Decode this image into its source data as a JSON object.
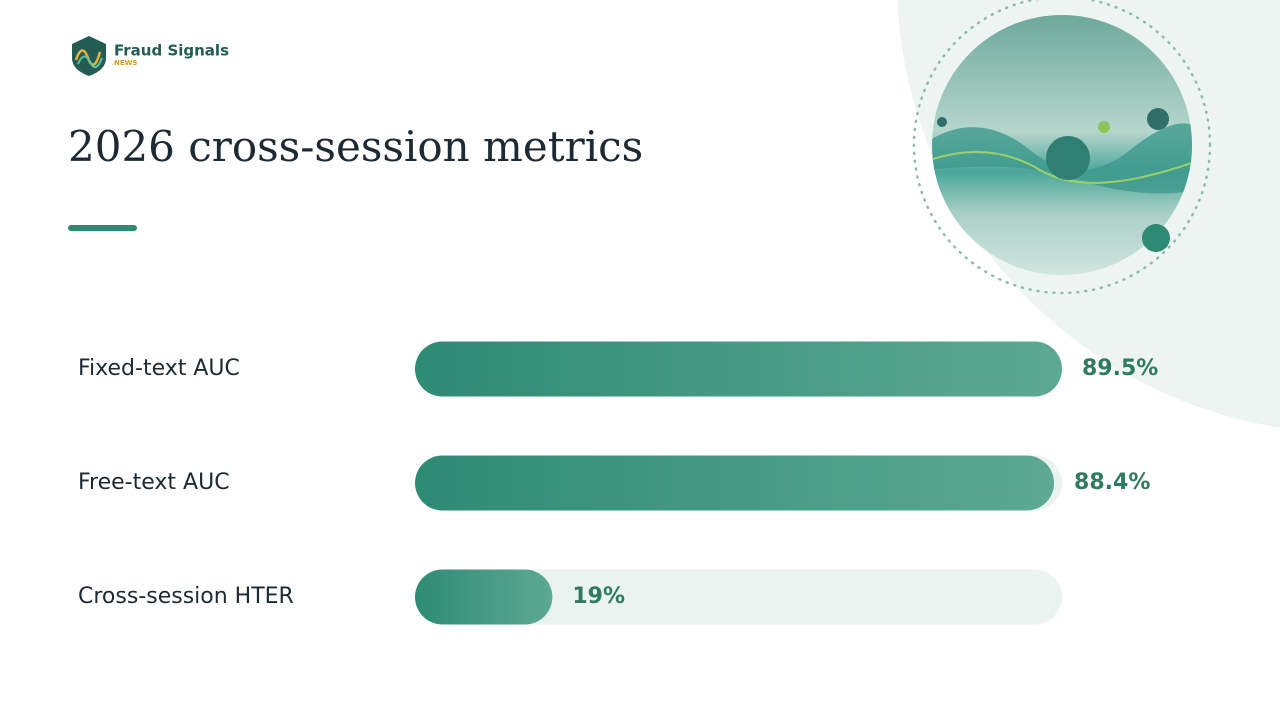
{
  "brand": {
    "name": "Fraud Signals",
    "tagline": "NEWS"
  },
  "chart_data": {
    "type": "bar",
    "orientation": "horizontal",
    "title": "2026 cross-session metrics",
    "categories": [
      "Fixed-text AUC",
      "Free-text AUC",
      "Cross-session HTER"
    ],
    "values": [
      89.5,
      88.4,
      19
    ],
    "value_labels": [
      "89.5%",
      "88.4%",
      "19%"
    ],
    "color": "#2e8b73",
    "xlim": [
      0,
      89.5
    ]
  }
}
